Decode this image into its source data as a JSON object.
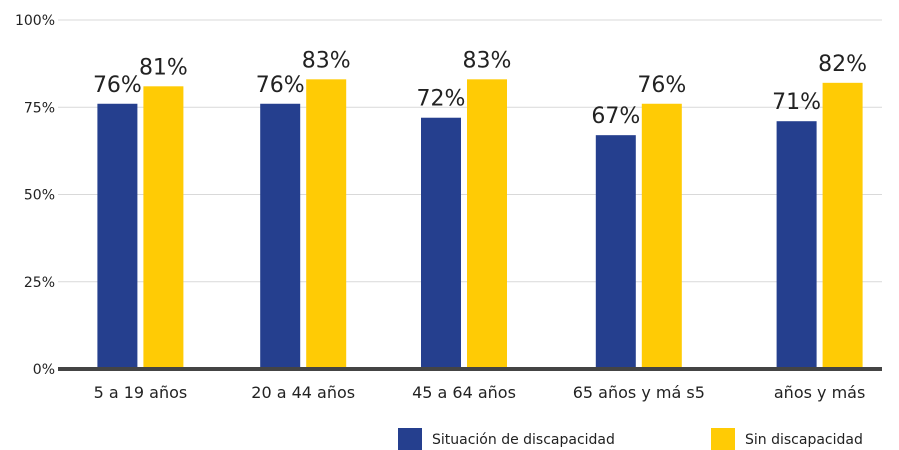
{
  "chart_data": {
    "type": "bar",
    "categories": [
      "5 a 19 años",
      "20 a 44 años",
      "45 a 64 años",
      "65 años y má s5",
      "años y más"
    ],
    "series": [
      {
        "name": "Situación de discapacidad",
        "color": "#253F8E",
        "values": [
          76,
          76,
          72,
          67,
          71
        ],
        "labels": [
          "76%",
          "76%",
          "72%",
          "67%",
          "71%"
        ]
      },
      {
        "name": "Sin discapacidad",
        "color": "#FFCB05",
        "values": [
          81,
          83,
          83,
          76,
          82
        ],
        "labels": [
          "81%",
          "83%",
          "83%",
          "76%",
          "82%"
        ]
      }
    ],
    "ylim": [
      0,
      100
    ],
    "yticks": [
      0,
      25,
      50,
      75,
      100
    ],
    "ytick_labels": [
      "0%",
      "25%",
      "50%",
      "75%",
      "100%"
    ],
    "title": "",
    "xlabel": "",
    "ylabel": "",
    "grid": true,
    "legend": "bottom-right"
  }
}
